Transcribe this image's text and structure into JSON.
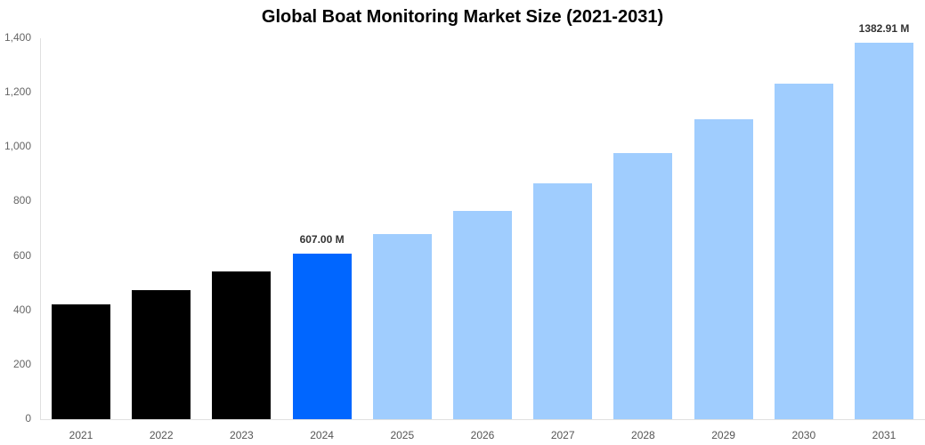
{
  "chart_data": {
    "type": "bar",
    "title": "Global Boat Monitoring Market Size (2021-2031)",
    "xlabel": "",
    "ylabel": "",
    "ylim": [
      0,
      1400
    ],
    "yticks": [
      0,
      200,
      400,
      600,
      800,
      1000,
      1200,
      1400
    ],
    "ytick_labels": [
      "0",
      "200",
      "400",
      "600",
      "800",
      "1,000",
      "1,200",
      "1,400"
    ],
    "categories": [
      "2021",
      "2022",
      "2023",
      "2024",
      "2025",
      "2026",
      "2027",
      "2028",
      "2029",
      "2030",
      "2031"
    ],
    "values": [
      422,
      475,
      542,
      607.0,
      679,
      766,
      868,
      979,
      1101,
      1234,
      1382.91
    ],
    "bar_colors": [
      "#000000",
      "#000000",
      "#000000",
      "#0066ff",
      "#a0cdfe",
      "#a0cdfe",
      "#a0cdfe",
      "#a0cdfe",
      "#a0cdfe",
      "#a0cdfe",
      "#a0cdfe"
    ],
    "annotations": [
      {
        "category": "2024",
        "text": "607.00 M"
      },
      {
        "category": "2031",
        "text": "1382.91 M"
      }
    ],
    "grid": false,
    "legend": null
  }
}
